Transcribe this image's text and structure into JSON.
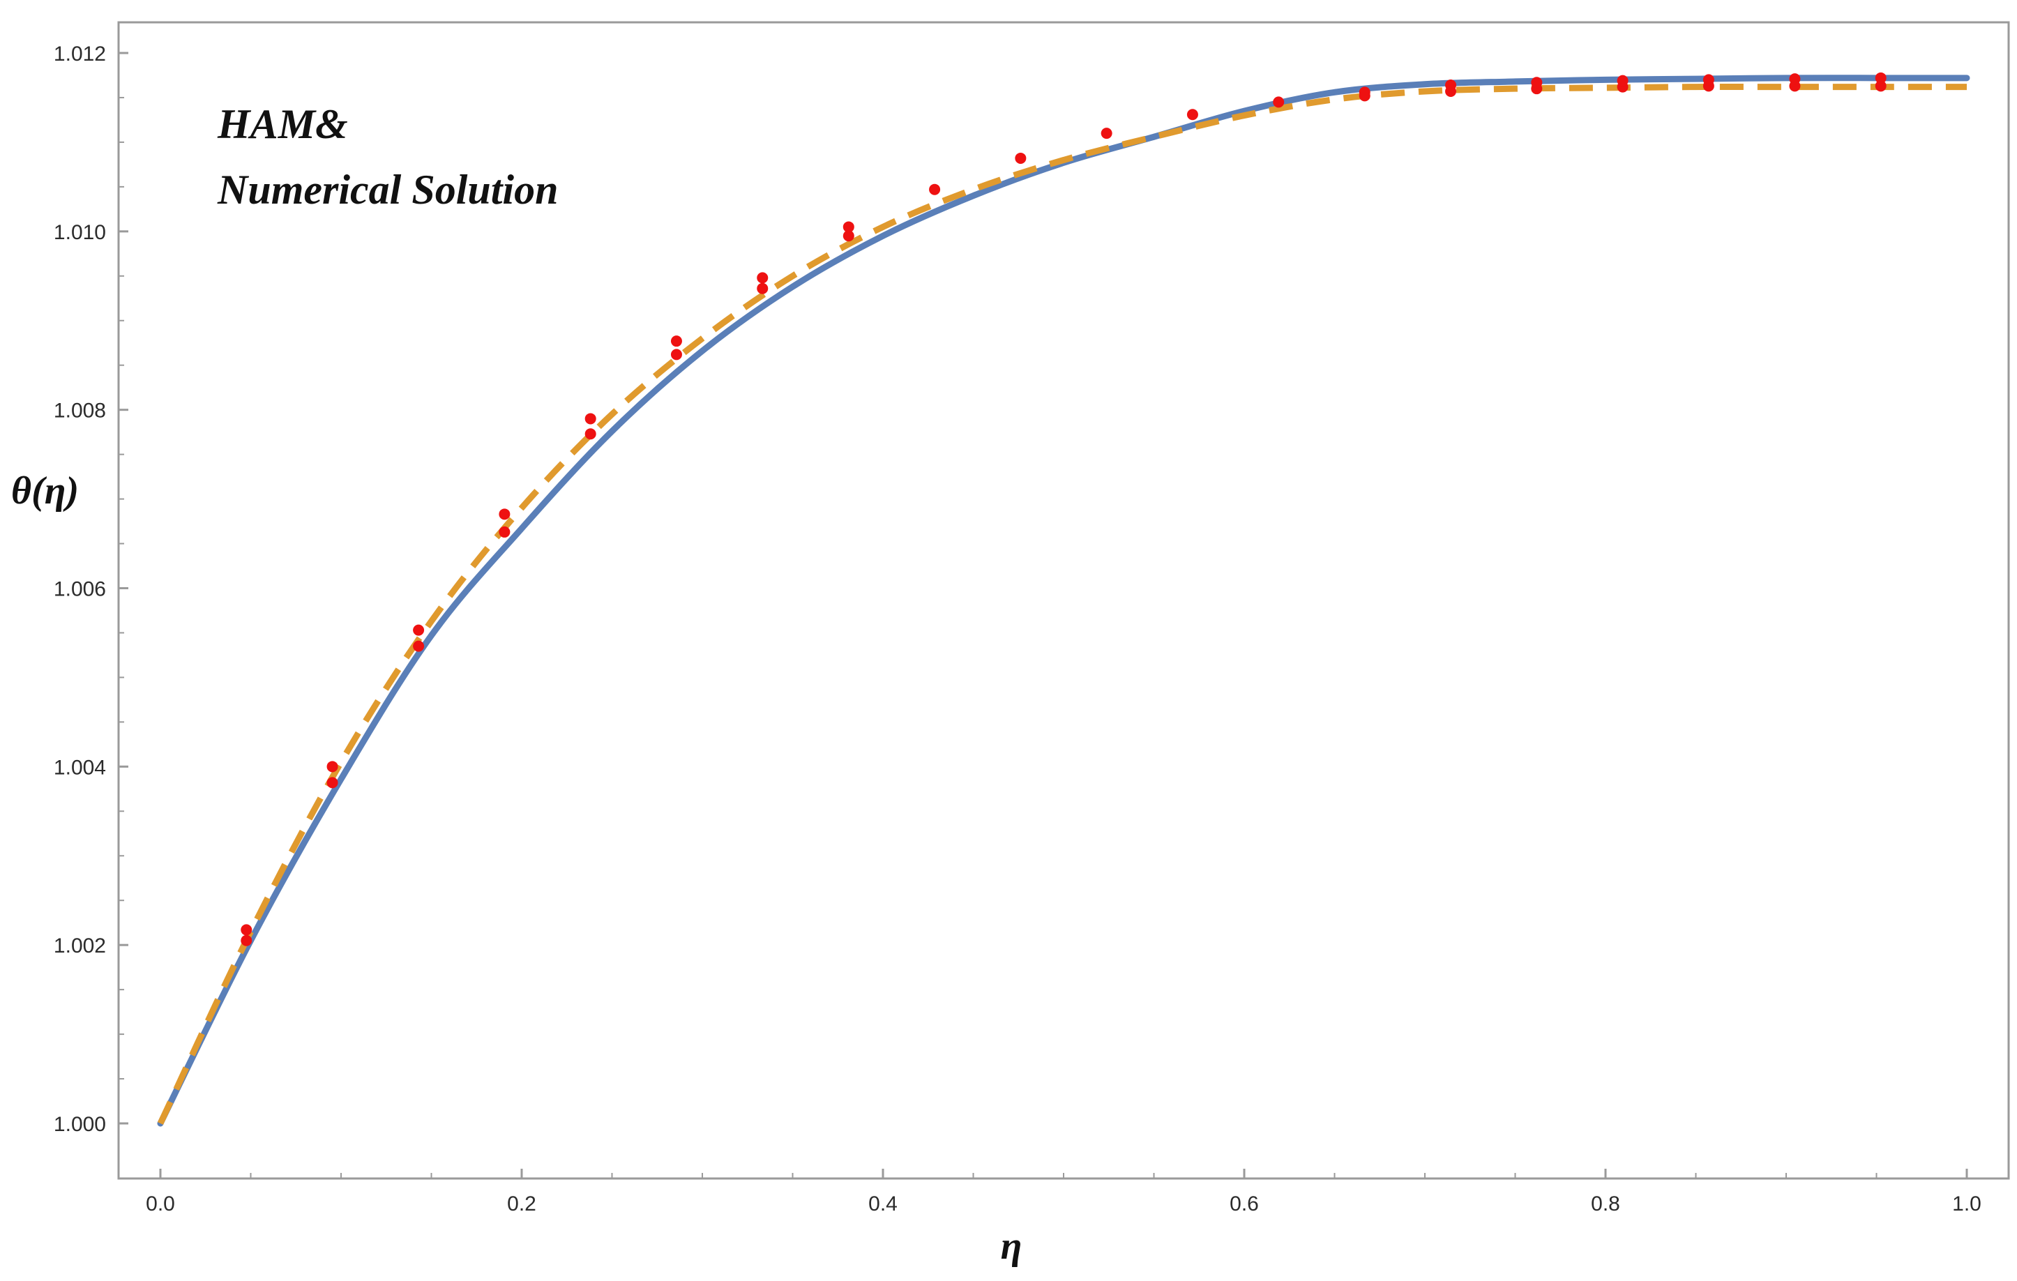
{
  "chart_data": {
    "type": "line",
    "xlabel": "η",
    "ylabel": "θ(η)",
    "xlim": [
      0,
      1
    ],
    "ylim": [
      1.0,
      1.012
    ],
    "x_ticks": [
      "0.0",
      "0.2",
      "0.4",
      "0.6",
      "0.8",
      "1.0"
    ],
    "y_ticks": [
      "1.000",
      "1.002",
      "1.004",
      "1.006",
      "1.008",
      "1.010",
      "1.012"
    ],
    "annotation": [
      "HAM&",
      "Numerical Solution"
    ],
    "grid": false,
    "colors": {
      "solid": "#5a7fb8",
      "dashed": "#e09a2e",
      "points": "#ee1111",
      "frame": "#9a9a9a"
    },
    "series": [
      {
        "style": "solid",
        "x": [
          0,
          0.05,
          0.1,
          0.15,
          0.2,
          0.25,
          0.3,
          0.35,
          0.4,
          0.45,
          0.5,
          0.55,
          0.6,
          0.65,
          0.7,
          0.75,
          0.8,
          0.85,
          0.9,
          0.95,
          1.0
        ],
        "values": [
          1.0,
          1.00205,
          1.00386,
          1.00547,
          1.00667,
          1.00776,
          1.00866,
          1.00938,
          1.00995,
          1.0104,
          1.01077,
          1.01106,
          1.01135,
          1.01156,
          1.01165,
          1.01168,
          1.0117,
          1.01171,
          1.01172,
          1.01172,
          1.01172
        ]
      },
      {
        "style": "dashed",
        "x": [
          0,
          0.05,
          0.1,
          0.15,
          0.2,
          0.25,
          0.3,
          0.35,
          0.4,
          0.45,
          0.5,
          0.55,
          0.6,
          0.65,
          0.7,
          0.75,
          0.8,
          0.85,
          0.9,
          0.95,
          1.0
        ],
        "values": [
          1.0,
          1.00215,
          1.00405,
          1.00563,
          1.0069,
          1.00795,
          1.0088,
          1.0095,
          1.01005,
          1.01047,
          1.0108,
          1.01106,
          1.0113,
          1.01148,
          1.01157,
          1.0116,
          1.01161,
          1.01162,
          1.01162,
          1.01162,
          1.01162
        ]
      },
      {
        "style": "points",
        "x": [
          0.0476,
          0.0476,
          0.0952,
          0.0952,
          0.1429,
          0.1429,
          0.1905,
          0.1905,
          0.2381,
          0.2381,
          0.2857,
          0.2857,
          0.3333,
          0.3333,
          0.381,
          0.381,
          0.4286,
          0.4762,
          0.5238,
          0.5714,
          0.619,
          0.6667,
          0.6667,
          0.7143,
          0.7143,
          0.7619,
          0.7619,
          0.8095,
          0.8095,
          0.8571,
          0.8571,
          0.9048,
          0.9048,
          0.9524,
          0.9524
        ],
        "values": [
          1.00205,
          1.00217,
          1.00382,
          1.004,
          1.00535,
          1.00553,
          1.00663,
          1.00683,
          1.00773,
          1.0079,
          1.00862,
          1.00877,
          1.00936,
          1.00948,
          1.00995,
          1.01005,
          1.01047,
          1.01082,
          1.0111,
          1.01131,
          1.01145,
          1.01152,
          1.01156,
          1.01157,
          1.01164,
          1.0116,
          1.01167,
          1.01162,
          1.01169,
          1.01163,
          1.0117,
          1.01163,
          1.01171,
          1.01163,
          1.01172
        ]
      }
    ]
  }
}
